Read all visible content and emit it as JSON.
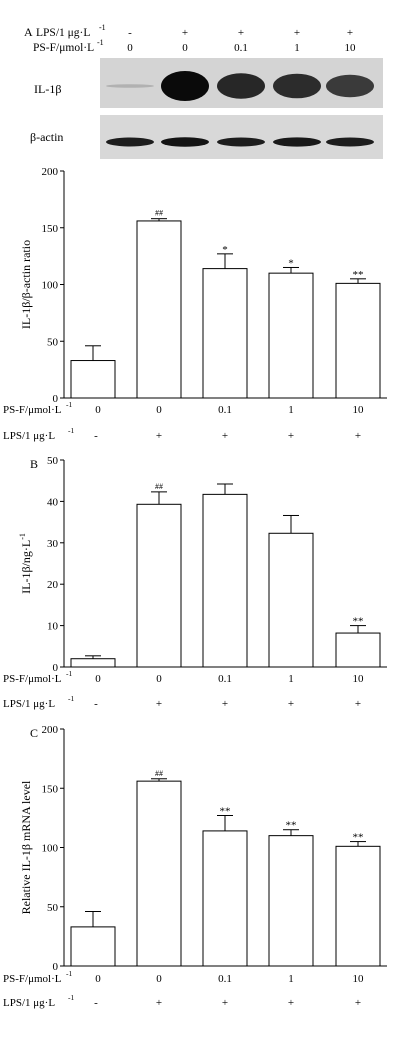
{
  "blot": {
    "panel_letter": "A",
    "lps_row_label": "LPS/1 μg·L",
    "lps_row_label_sup": "-1",
    "psf_row_label": "PS-F/μmol·L",
    "psf_row_label_sup": "-1",
    "lps_signs": [
      "-",
      "+",
      "+",
      "+",
      "+"
    ],
    "psf_doses": [
      "0",
      "0",
      "0.1",
      "1",
      "10"
    ],
    "bands": [
      {
        "name": "IL-1β",
        "intensities": [
          0.12,
          1.0,
          0.85,
          0.82,
          0.75
        ]
      },
      {
        "name": "β-actin",
        "intensities": [
          0.9,
          0.95,
          0.9,
          0.92,
          0.9
        ]
      }
    ]
  },
  "chart_data": [
    {
      "type": "bar",
      "panel_letter": "",
      "ylabel": "IL-1β/β-actin ratio",
      "ylim": [
        0,
        200
      ],
      "yticks": [
        0,
        50,
        100,
        150,
        200
      ],
      "categories": [
        "0",
        "0",
        "0.1",
        "1",
        "10"
      ],
      "lps": [
        "-",
        "+",
        "+",
        "+",
        "+"
      ],
      "values": [
        33,
        156,
        114,
        110,
        101
      ],
      "errors": [
        13,
        2,
        13,
        5,
        4
      ],
      "annotations": [
        "",
        "##",
        "*",
        "*",
        "**"
      ],
      "row1_label": "PS-F/μmol·L",
      "row1_sup": "-1",
      "row2_label": "LPS/1 μg·L",
      "row2_sup": "-1"
    },
    {
      "type": "bar",
      "panel_letter": "B",
      "ylabel": "IL-1β/ng·L",
      "ylabel_sup": "-1",
      "ylim": [
        0,
        50
      ],
      "yticks": [
        0,
        10,
        20,
        30,
        40,
        50
      ],
      "categories": [
        "0",
        "0",
        "0.1",
        "1",
        "10"
      ],
      "lps": [
        "-",
        "+",
        "+",
        "+",
        "+"
      ],
      "values": [
        2,
        39.3,
        41.7,
        32.3,
        8.2
      ],
      "errors": [
        0.7,
        3,
        2.5,
        4.3,
        1.8
      ],
      "annotations": [
        "",
        "##",
        "",
        "",
        "**"
      ],
      "row1_label": "PS-F/μmol·L",
      "row1_sup": "-1",
      "row2_label": "LPS/1 μg·L",
      "row2_sup": "-1"
    },
    {
      "type": "bar",
      "panel_letter": "C",
      "ylabel": "Relative IL-1β mRNA level",
      "ylim": [
        0,
        200
      ],
      "yticks": [
        0,
        50,
        100,
        150,
        200
      ],
      "categories": [
        "0",
        "0",
        "0.1",
        "1",
        "10"
      ],
      "lps": [
        "-",
        "+",
        "+",
        "+",
        "+"
      ],
      "values": [
        33,
        156,
        114,
        110,
        101
      ],
      "errors": [
        13,
        2,
        13,
        5,
        4
      ],
      "annotations": [
        "",
        "##",
        "**",
        "**",
        "**"
      ],
      "row1_label": "PS-F/μmol·L",
      "row1_sup": "-1",
      "row2_label": "LPS/1 μg·L",
      "row2_sup": "-1"
    }
  ]
}
